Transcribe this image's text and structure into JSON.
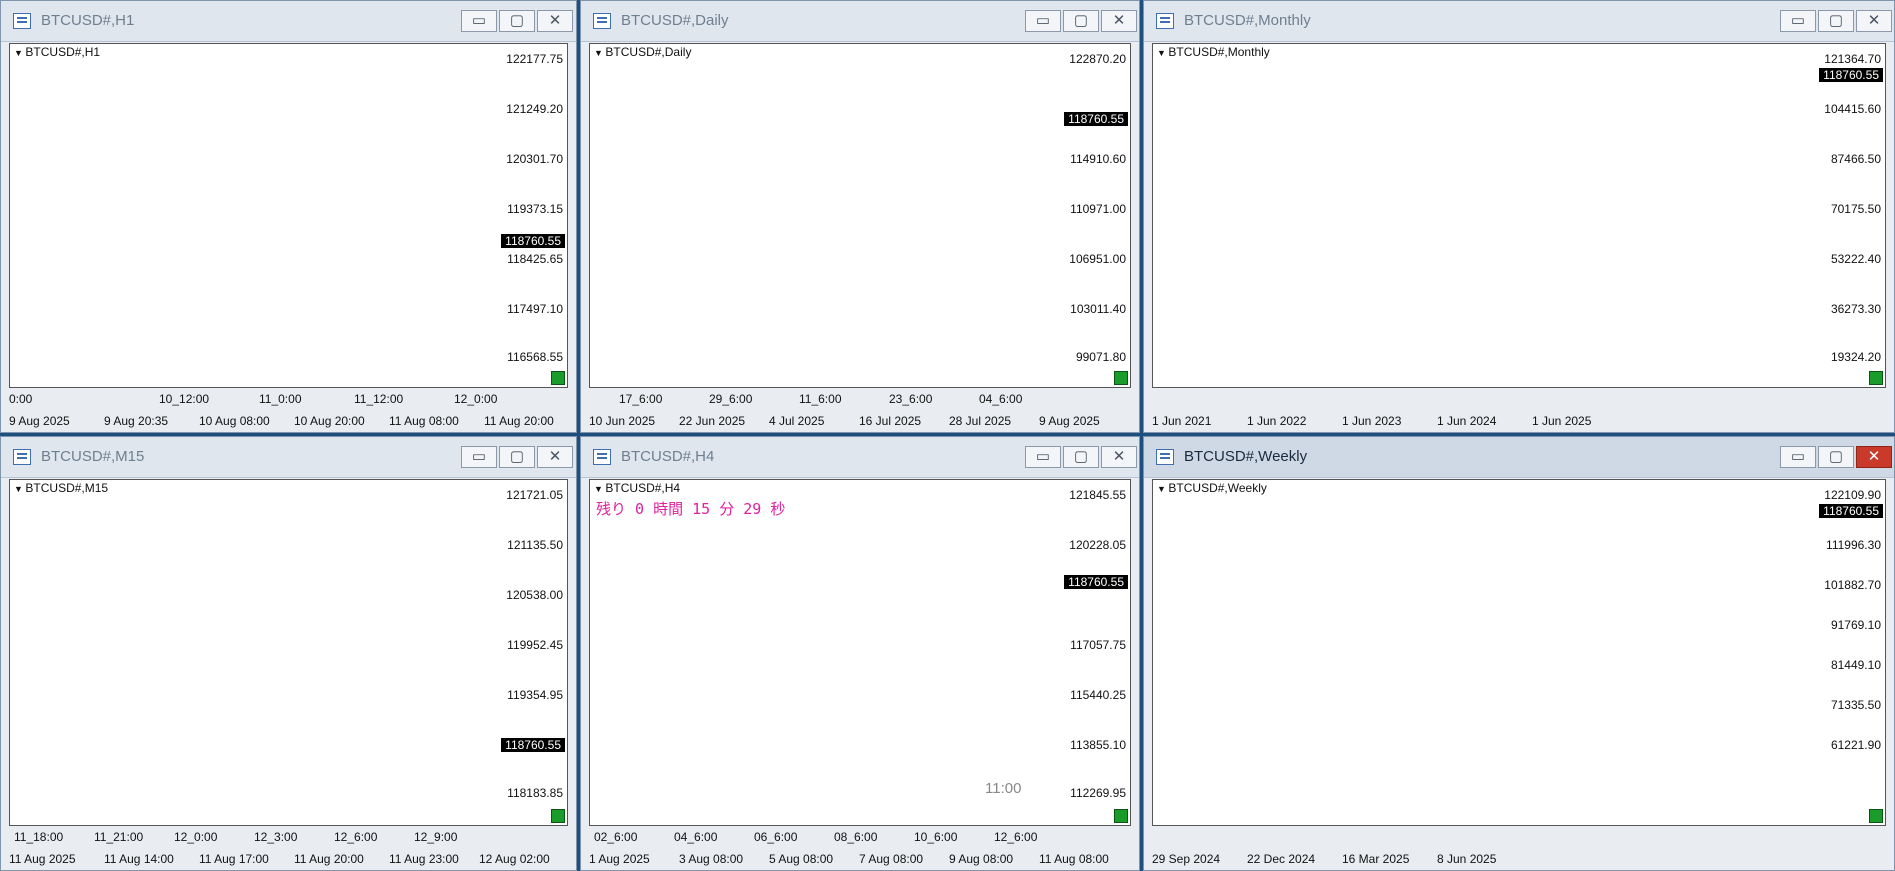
{
  "windows": [
    {
      "title": "BTCUSD#,H1",
      "symbol": "BTCUSD#,H1",
      "y_labels": [
        "122177.75",
        "121249.20",
        "120301.70",
        "119373.15",
        "118425.65",
        "117497.10",
        "116568.55"
      ],
      "price": "118760.55",
      "x_times": [
        "0:00",
        "10_12:00",
        "11_0:00",
        "11_12:00",
        "12_0:00"
      ],
      "x_dates": [
        "9 Aug 2025",
        "9 Aug 20:35",
        "10 Aug 08:00",
        "10 Aug 20:00",
        "11 Aug 08:00",
        "11 Aug 20:00"
      ],
      "stamp": "",
      "timer": ""
    },
    {
      "title": "BTCUSD#,Daily",
      "symbol": "BTCUSD#,Daily",
      "y_labels": [
        "122870.20",
        "118760.55",
        "114910.60",
        "110971.00",
        "106951.00",
        "103011.40",
        "99071.80"
      ],
      "price": "118760.55",
      "x_times": [
        "17_6:00",
        "29_6:00",
        "11_6:00",
        "23_6:00",
        "04_6:00"
      ],
      "x_dates": [
        "10 Jun 2025",
        "22 Jun 2025",
        "4 Jul 2025",
        "16 Jul 2025",
        "28 Jul 2025",
        "9 Aug 2025"
      ],
      "stamp": "",
      "timer": ""
    },
    {
      "title": "BTCUSD#,Monthly",
      "symbol": "BTCUSD#,Monthly",
      "y_labels": [
        "121364.70",
        "104415.60",
        "87466.50",
        "70175.50",
        "53222.40",
        "36273.30",
        "19324.20"
      ],
      "price": "118760.55",
      "x_times": [],
      "x_dates": [
        "1 Jun 2021",
        "1 Jun 2022",
        "1 Jun 2023",
        "1 Jun 2024",
        "1 Jun 2025"
      ],
      "stamp": "",
      "timer": ""
    },
    {
      "title": "BTCUSD#,M15",
      "symbol": "BTCUSD#,M15",
      "y_labels": [
        "121721.05",
        "121135.50",
        "120538.00",
        "119952.45",
        "119354.95",
        "118760.55",
        "118183.85"
      ],
      "price": "118760.55",
      "x_times": [
        "11_18:00",
        "11_21:00",
        "12_0:00",
        "12_3:00",
        "12_6:00",
        "12_9:00"
      ],
      "x_dates": [
        "11 Aug 2025",
        "11 Aug 14:00",
        "11 Aug 17:00",
        "11 Aug 20:00",
        "11 Aug 23:00",
        "12 Aug 02:00"
      ],
      "stamp": "",
      "timer": ""
    },
    {
      "title": "BTCUSD#,H4",
      "symbol": "BTCUSD#,H4",
      "y_labels": [
        "121845.55",
        "120228.05",
        "118760.55",
        "117057.75",
        "115440.25",
        "113855.10",
        "112269.95"
      ],
      "price": "118760.55",
      "x_times": [
        "02_6:00",
        "04_6:00",
        "06_6:00",
        "08_6:00",
        "10_6:00",
        "12_6:00"
      ],
      "x_dates": [
        "1 Aug 2025",
        "3 Aug 08:00",
        "5 Aug 08:00",
        "7 Aug 08:00",
        "9 Aug 08:00",
        "11 Aug 08:00"
      ],
      "stamp": "11:00",
      "timer": "残り 0 時間 15 分 29 秒"
    },
    {
      "title": "BTCUSD#,Weekly",
      "symbol": "BTCUSD#,Weekly",
      "y_labels": [
        "122109.90",
        "118760.55",
        "111996.30",
        "101882.70",
        "91769.10",
        "81449.10",
        "71335.50",
        "61221.90"
      ],
      "price": "118760.55",
      "x_times": [],
      "x_dates": [
        "29 Sep 2024",
        "22 Dec 2024",
        "16 Mar 2025",
        "8 Jun 2025"
      ],
      "stamp": "",
      "timer": ""
    }
  ]
}
